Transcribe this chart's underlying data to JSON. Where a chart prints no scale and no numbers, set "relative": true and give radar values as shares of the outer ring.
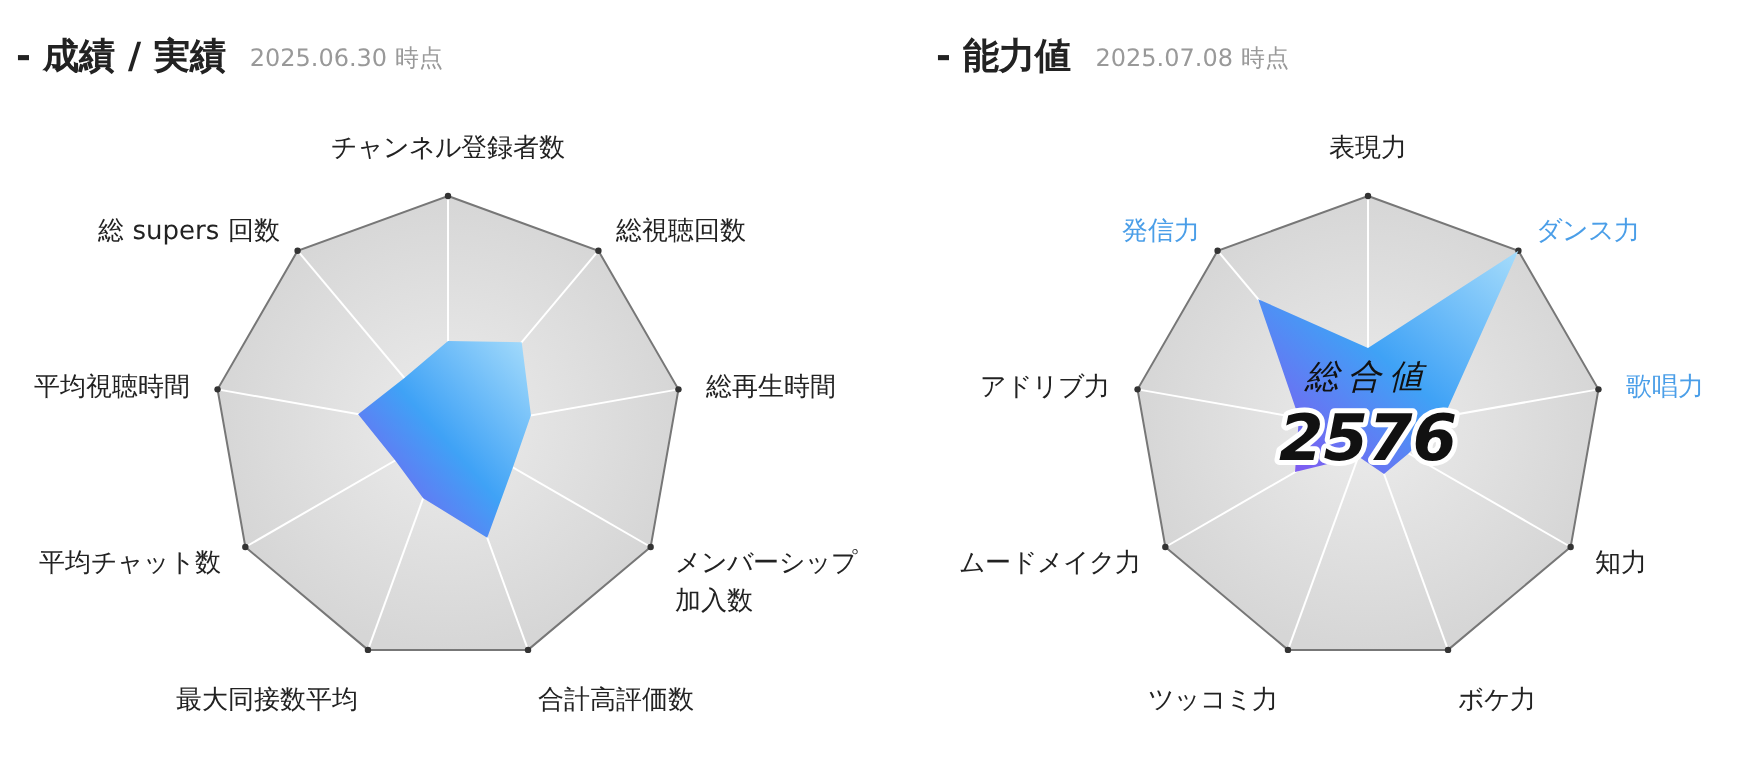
{
  "chart_data": [
    {
      "type": "radar",
      "title": "- 成績 / 実績",
      "subtitle": "2025.06.30 時点",
      "relative": true,
      "categories": [
        "チャンネル登録者数",
        "総視聴回数",
        "総再生時間",
        "メンバーシップ加入数",
        "合計高評価数",
        "最大同接数平均",
        "平均チャット数",
        "平均視聴時間",
        "総 supers 回数"
      ],
      "series": [
        {
          "color": "#3fa2f6",
          "values": [
            0.38,
            0.49,
            0.36,
            0.32,
            0.49,
            0.31,
            0.26,
            0.39,
            0.29
          ]
        }
      ]
    },
    {
      "type": "radar",
      "title": "- 能力値",
      "subtitle": "2025.07.08 時点",
      "relative": true,
      "categories": [
        "表現力",
        "ダンス力",
        "歌唱力",
        "知力",
        "ボケ力",
        "ツッコミ力",
        "ムードメイク力",
        "アドリブ力",
        "発信力"
      ],
      "colors": [
        "#222222",
        "#4a9ee8",
        "#4a9ee8",
        "#222222",
        "#222222",
        "#222222",
        "#222222",
        "#222222",
        "#4a9ee8"
      ],
      "series": [
        {
          "color": "#3fa2f6",
          "values": [
            0.35,
            1.0,
            0.33,
            0.2,
            0.2,
            0.12,
            0.36,
            0.3,
            0.73
          ]
        }
      ],
      "annotations": [
        "総合値",
        "2576"
      ]
    }
  ]
}
